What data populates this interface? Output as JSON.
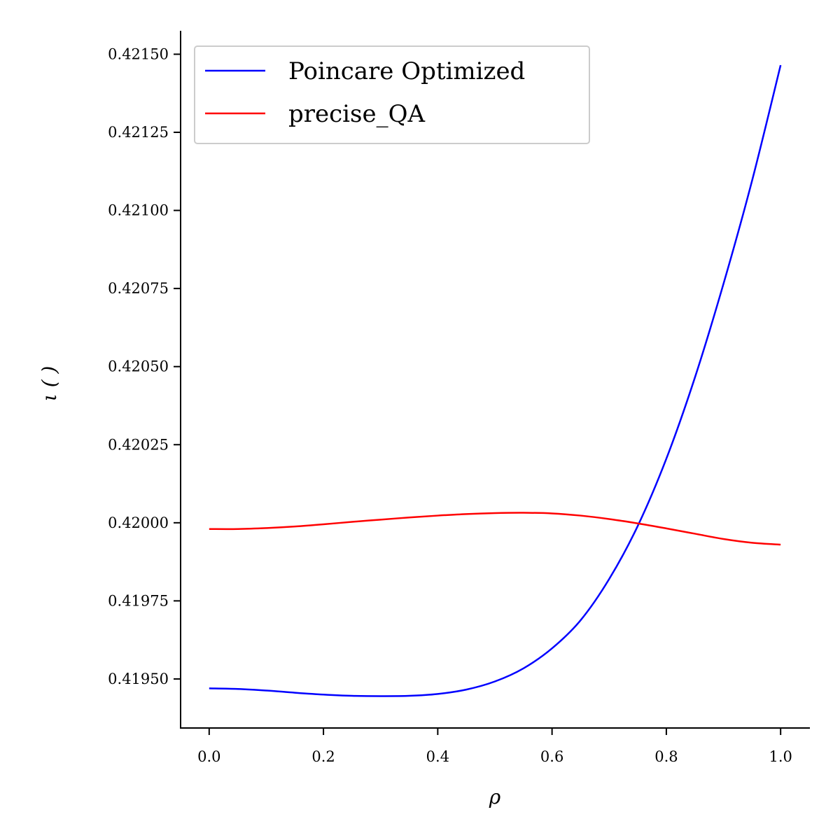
{
  "chart_data": {
    "type": "line",
    "xlabel": "ρ",
    "ylabel": "ι ( )",
    "xlim": [
      -0.05,
      1.05
    ],
    "ylim": [
      0.419343,
      0.421575
    ],
    "xticks": [
      "0.0",
      "0.2",
      "0.4",
      "0.6",
      "0.8",
      "1.0"
    ],
    "xtick_values": [
      0.0,
      0.2,
      0.4,
      0.6,
      0.8,
      1.0
    ],
    "yticks": [
      "0.41950",
      "0.41975",
      "0.42000",
      "0.42025",
      "0.42050",
      "0.42075",
      "0.42100",
      "0.42125",
      "0.42150"
    ],
    "ytick_values": [
      0.4195,
      0.41975,
      0.42,
      0.42025,
      0.4205,
      0.42075,
      0.421,
      0.42125,
      0.4215
    ],
    "legend_position": "top-left",
    "grid": false,
    "series": [
      {
        "name": "Poincare Optimized",
        "color": "#0000ff",
        "x": [
          0.0,
          0.05,
          0.1,
          0.15,
          0.2,
          0.25,
          0.3,
          0.35,
          0.4,
          0.45,
          0.5,
          0.55,
          0.6,
          0.65,
          0.7,
          0.75,
          0.8,
          0.85,
          0.9,
          0.95,
          1.0
        ],
        "y": [
          0.41947,
          0.419468,
          0.419463,
          0.419456,
          0.41945,
          0.419446,
          0.419445,
          0.419446,
          0.419452,
          0.419466,
          0.419492,
          0.419534,
          0.419598,
          0.419688,
          0.41982,
          0.41999,
          0.420205,
          0.420465,
          0.420765,
          0.421095,
          0.421465
        ]
      },
      {
        "name": "precise_QA",
        "color": "#ff0000",
        "x": [
          0.0,
          0.05,
          0.1,
          0.15,
          0.2,
          0.25,
          0.3,
          0.35,
          0.4,
          0.45,
          0.5,
          0.55,
          0.6,
          0.65,
          0.7,
          0.75,
          0.8,
          0.85,
          0.9,
          0.95,
          1.0
        ],
        "y": [
          0.41998,
          0.41998,
          0.419983,
          0.419988,
          0.419995,
          0.420003,
          0.42001,
          0.420017,
          0.420023,
          0.420028,
          0.420031,
          0.420032,
          0.42003,
          0.420023,
          0.420012,
          0.419998,
          0.419982,
          0.419965,
          0.419948,
          0.419936,
          0.41993
        ]
      }
    ]
  }
}
